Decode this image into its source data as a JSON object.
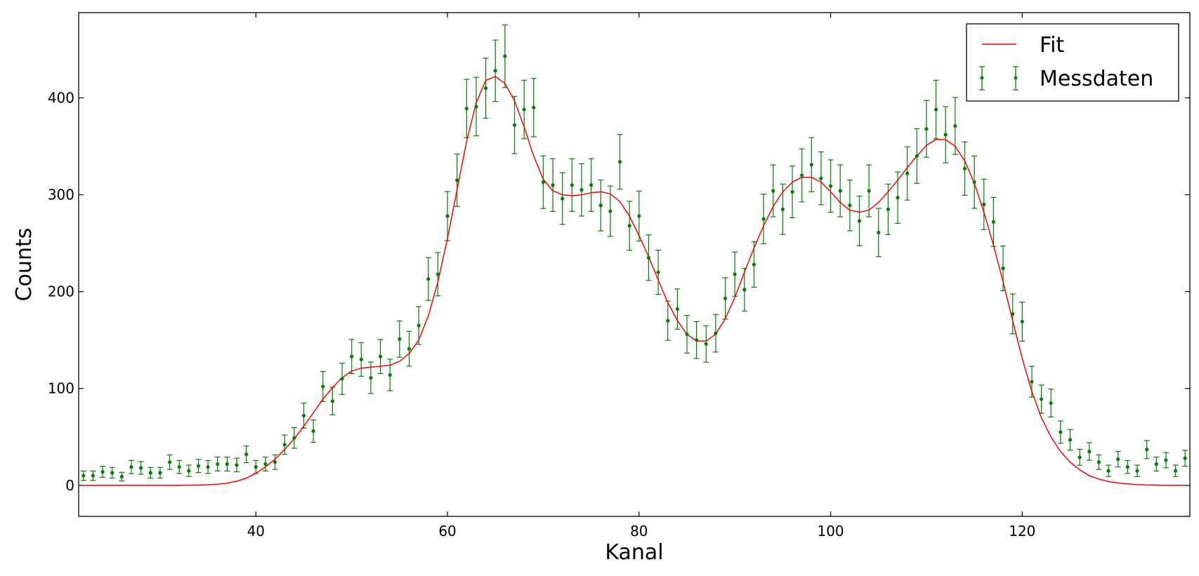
{
  "chart_data": {
    "type": "scatter",
    "title": "",
    "xlabel": "Kanal",
    "ylabel": "Counts",
    "xlim": [
      21.5,
      137.5
    ],
    "ylim": [
      -32,
      488
    ],
    "xticks": [
      40,
      60,
      80,
      100,
      120
    ],
    "yticks": [
      0,
      100,
      200,
      300,
      400
    ],
    "grid": false,
    "legend": {
      "position": "top-right",
      "entries": [
        "Fit",
        "Messdaten"
      ]
    },
    "colors": {
      "fit": "#ff0000",
      "data": "#007f00"
    },
    "series": [
      {
        "name": "Messdaten",
        "kind": "errorbar",
        "x": [
          22,
          23,
          24,
          25,
          26,
          27,
          28,
          29,
          30,
          31,
          32,
          33,
          34,
          35,
          36,
          37,
          38,
          39,
          40,
          41,
          42,
          43,
          44,
          45,
          46,
          47,
          48,
          49,
          50,
          51,
          52,
          53,
          54,
          55,
          56,
          57,
          58,
          59,
          60,
          61,
          62,
          63,
          64,
          65,
          66,
          67,
          68,
          69,
          70,
          71,
          72,
          73,
          74,
          75,
          76,
          77,
          78,
          79,
          80,
          81,
          82,
          83,
          84,
          85,
          86,
          87,
          88,
          89,
          90,
          91,
          92,
          93,
          94,
          95,
          96,
          97,
          98,
          99,
          100,
          101,
          102,
          103,
          104,
          105,
          106,
          107,
          108,
          109,
          110,
          111,
          112,
          113,
          114,
          115,
          116,
          117,
          118,
          119,
          120,
          121,
          122,
          123,
          124,
          125,
          126,
          127,
          128,
          129,
          130,
          131,
          132,
          133,
          134,
          135,
          136,
          137
        ],
        "y": [
          10,
          10,
          14,
          13,
          9,
          19,
          18,
          13,
          13,
          24,
          19,
          15,
          20,
          19,
          22,
          22,
          21,
          32,
          19,
          22,
          24,
          42,
          49,
          72,
          56,
          102,
          87,
          110,
          133,
          130,
          111,
          133,
          114,
          151,
          141,
          165,
          213,
          218,
          278,
          315,
          389,
          391,
          410,
          428,
          443,
          372,
          388,
          390,
          313,
          310,
          296,
          310,
          305,
          310,
          289,
          283,
          334,
          268,
          278,
          235,
          220,
          170,
          182,
          156,
          150,
          146,
          157,
          193,
          218,
          202,
          228,
          275,
          304,
          285,
          303,
          320,
          331,
          317,
          309,
          304,
          289,
          273,
          304,
          261,
          285,
          297,
          322,
          340,
          368,
          388,
          362,
          371,
          327,
          313,
          290,
          272,
          224,
          177,
          169,
          107,
          89,
          85,
          55,
          47,
          29,
          35,
          24,
          15,
          27,
          19,
          15,
          37,
          22,
          26,
          15,
          28
        ],
        "error": [
          4.8,
          4.8,
          5.7,
          5.5,
          4.5,
          6.8,
          6.6,
          5.5,
          5.5,
          7.5,
          6.7,
          5.9,
          6.8,
          6.6,
          7.2,
          7.2,
          7.0,
          8.6,
          6.7,
          7.2,
          7.5,
          10.0,
          10.7,
          13.0,
          11.5,
          15.5,
          14.3,
          16.1,
          17.6,
          17.4,
          16.2,
          17.6,
          16.3,
          18.7,
          18.0,
          19.5,
          22.1,
          22.4,
          25.3,
          27.0,
          30.1,
          30.2,
          31.0,
          31.7,
          32.3,
          29.5,
          30.2,
          30.2,
          27.2,
          27.2,
          26.7,
          27.2,
          27.0,
          27.2,
          26.3,
          26.0,
          28.2,
          25.3,
          25.8,
          23.5,
          22.8,
          20.2,
          20.8,
          19.4,
          19.0,
          18.8,
          19.4,
          21.4,
          22.8,
          22.0,
          23.4,
          25.6,
          26.8,
          26.0,
          26.7,
          27.4,
          27.9,
          27.3,
          27.0,
          26.8,
          26.2,
          25.6,
          26.8,
          24.9,
          26.0,
          26.5,
          27.5,
          28.2,
          29.3,
          30.2,
          29.0,
          29.4,
          27.6,
          27.0,
          26.0,
          25.3,
          23.1,
          20.5,
          20.1,
          15.9,
          14.6,
          14.3,
          11.5,
          10.6,
          8.3,
          9.1,
          7.5,
          5.9,
          8.0,
          6.7,
          5.9,
          9.3,
          7.2,
          7.8,
          5.9,
          8.2
        ]
      },
      {
        "name": "Fit",
        "kind": "line",
        "x": [
          22,
          24,
          26,
          28,
          30,
          32,
          34,
          35,
          36,
          37,
          38,
          39,
          40,
          41,
          42,
          43,
          44,
          45,
          46,
          47,
          48,
          49,
          50,
          51,
          52,
          53,
          54,
          55,
          56,
          57,
          58,
          59,
          60,
          61,
          62,
          63,
          64,
          65,
          66,
          67,
          68,
          69,
          70,
          71,
          72,
          73,
          74,
          75,
          76,
          77,
          78,
          79,
          80,
          81,
          82,
          83,
          84,
          85,
          86,
          87,
          88,
          89,
          90,
          91,
          92,
          93,
          94,
          95,
          96,
          97,
          98,
          99,
          100,
          101,
          102,
          103,
          104,
          105,
          106,
          107,
          108,
          109,
          110,
          111,
          112,
          113,
          114,
          115,
          116,
          117,
          118,
          119,
          120,
          121,
          122,
          123,
          124,
          125,
          126,
          127,
          128,
          129,
          130,
          131,
          132,
          133,
          134,
          135,
          136,
          137
        ],
        "y": [
          0,
          0,
          0,
          0,
          0,
          0,
          0.3,
          0.6,
          1.2,
          2.3,
          4.2,
          7.5,
          12.5,
          19,
          27,
          37,
          48,
          61,
          75,
          89,
          101,
          111,
          118,
          121,
          122,
          123,
          124,
          128,
          136,
          150,
          175,
          210,
          255,
          305,
          355,
          395,
          418,
          422,
          415,
          397,
          370,
          340,
          316,
          304,
          300,
          299,
          300,
          302,
          303,
          301,
          293,
          278,
          258,
          236,
          212,
          189,
          170,
          156,
          149,
          149,
          156,
          172,
          194,
          220,
          245,
          268,
          288,
          303,
          313,
          318,
          318,
          313,
          303,
          292,
          284,
          282,
          284,
          292,
          303,
          315,
          328,
          340,
          351,
          357,
          357,
          350,
          335,
          312,
          282,
          248,
          210,
          170,
          131,
          97,
          70,
          50,
          35,
          24,
          16,
          10,
          6.5,
          4,
          2.5,
          1.5,
          0.8,
          0.4,
          0.2,
          0.1,
          0,
          0
        ]
      }
    ]
  }
}
